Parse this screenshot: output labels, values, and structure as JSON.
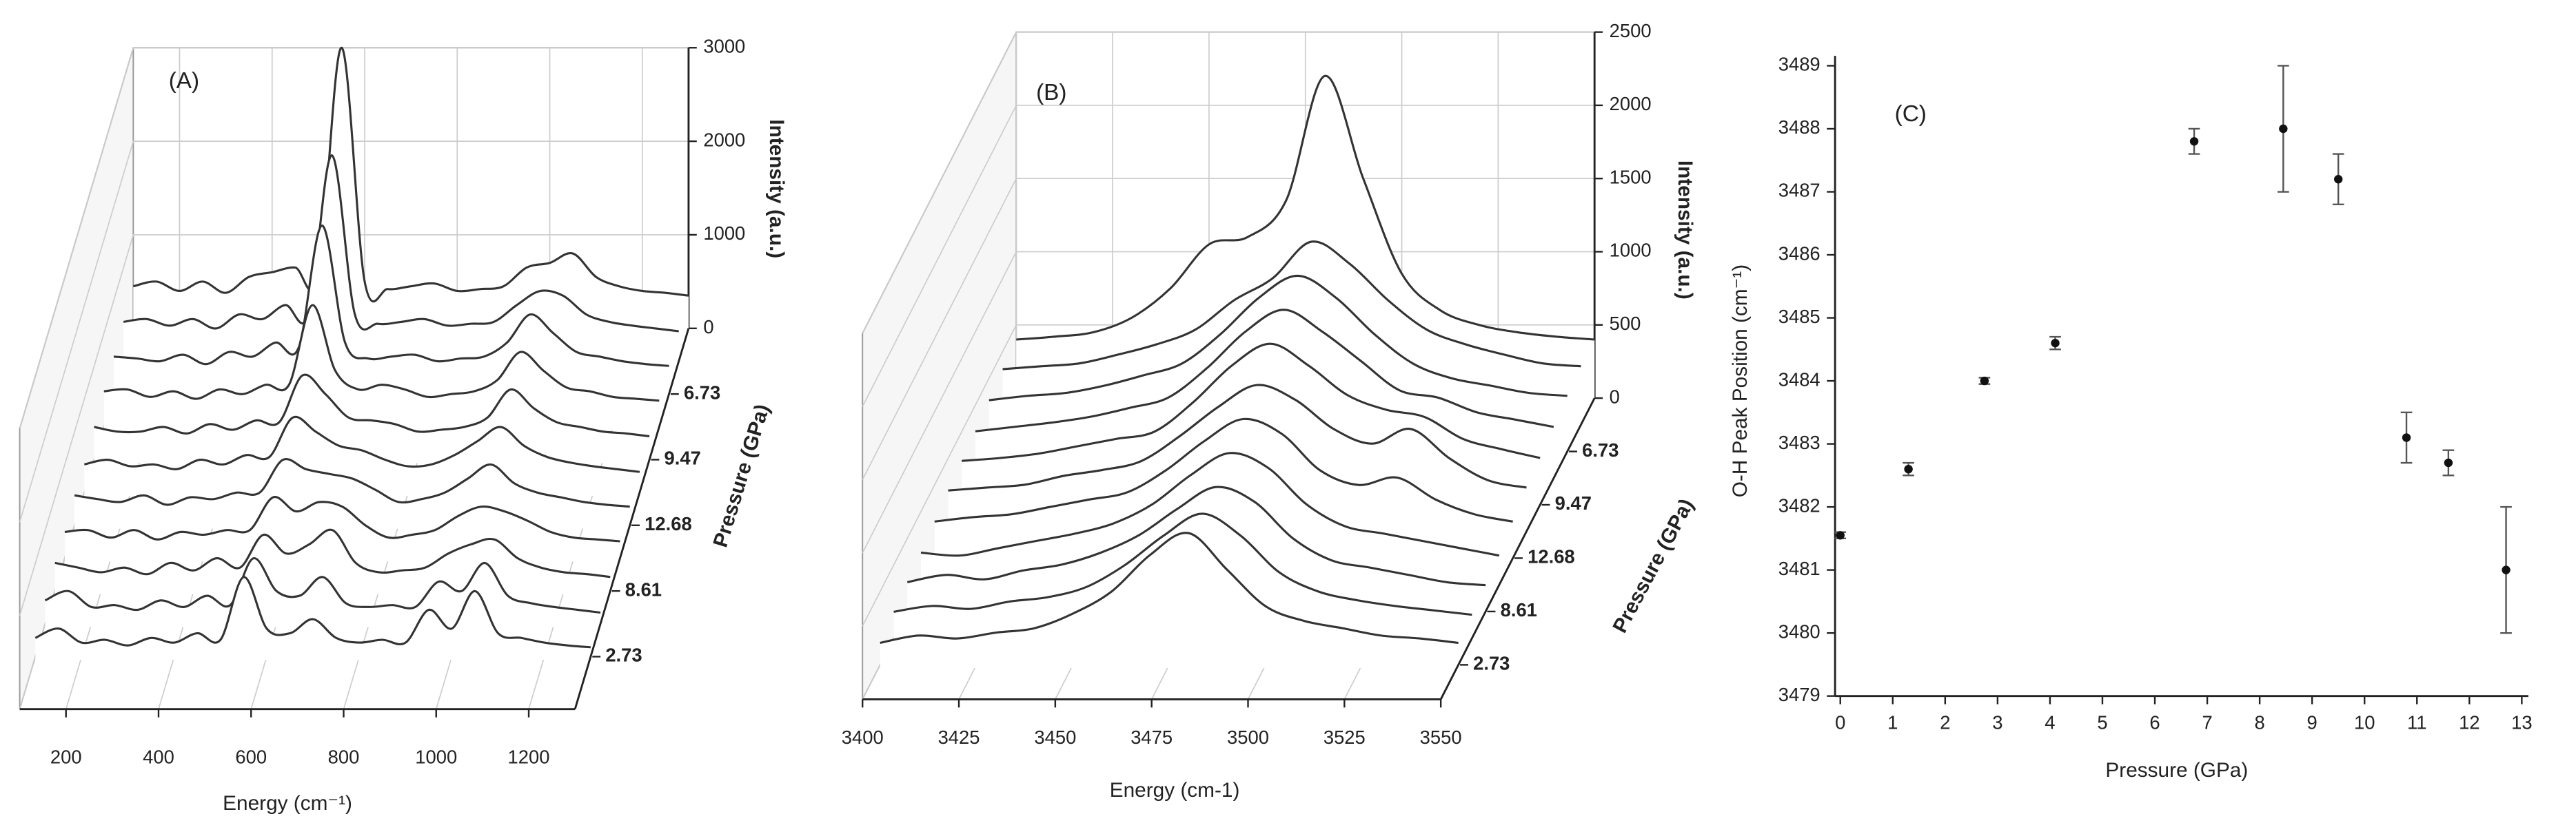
{
  "chart_data": [
    {
      "type": "waterfall",
      "label": "(A)",
      "xlabel": "Energy (cm⁻¹)",
      "ylabel": "Intensity (a.u.)",
      "zlabel": "Pressure (GPa)",
      "color": "#333333",
      "x": [
        100,
        150,
        200,
        250,
        300,
        350,
        400,
        450,
        500,
        550,
        600,
        650,
        700,
        750,
        800,
        850,
        900,
        950,
        1000,
        1050,
        1100,
        1150,
        1200,
        1250,
        1300
      ],
      "xlim": [
        100,
        1300
      ],
      "xticks": [
        200,
        400,
        600,
        800,
        1000,
        1200
      ],
      "ylim": [
        0,
        3000
      ],
      "yticks": [
        0,
        1000,
        2000,
        3000
      ],
      "categories": [
        "2.73",
        null,
        "8.61",
        null,
        "12.68",
        null,
        "9.47",
        null,
        "6.73",
        null,
        null
      ],
      "series": [
        {
          "values": [
            200,
            300,
            150,
            180,
            120,
            200,
            150,
            250,
            180,
            850,
            300,
            250,
            400,
            200,
            150,
            180,
            150,
            500,
            300,
            700,
            250,
            200,
            150,
            120,
            100
          ]
        },
        {
          "values": [
            250,
            350,
            180,
            200,
            150,
            250,
            180,
            300,
            200,
            700,
            350,
            300,
            500,
            220,
            180,
            200,
            180,
            450,
            350,
            650,
            300,
            220,
            180,
            150,
            120
          ]
        },
        {
          "values": [
            300,
            250,
            200,
            250,
            180,
            300,
            220,
            350,
            250,
            600,
            400,
            500,
            650,
            300,
            200,
            220,
            250,
            400,
            500,
            550,
            350,
            250,
            200,
            180,
            150
          ]
        },
        {
          "values": [
            280,
            300,
            220,
            300,
            200,
            280,
            250,
            300,
            300,
            650,
            500,
            600,
            550,
            350,
            220,
            250,
            300,
            450,
            550,
            500,
            400,
            280,
            220,
            200,
            180
          ]
        },
        {
          "values": [
            320,
            280,
            250,
            320,
            220,
            300,
            280,
            350,
            350,
            700,
            600,
            550,
            500,
            380,
            250,
            280,
            350,
            500,
            650,
            450,
            350,
            300,
            250,
            220,
            200
          ]
        },
        {
          "values": [
            300,
            350,
            280,
            300,
            250,
            350,
            300,
            400,
            380,
            800,
            650,
            500,
            450,
            350,
            280,
            300,
            400,
            550,
            700,
            500,
            380,
            320,
            280,
            250,
            220
          ]
        },
        {
          "values": [
            350,
            300,
            300,
            350,
            280,
            380,
            320,
            420,
            400,
            900,
            700,
            450,
            420,
            380,
            300,
            320,
            350,
            450,
            750,
            550,
            400,
            350,
            300,
            280,
            250
          ]
        },
        {
          "values": [
            380,
            400,
            320,
            380,
            300,
            400,
            350,
            450,
            450,
            1300,
            600,
            400,
            450,
            400,
            320,
            350,
            380,
            500,
            800,
            600,
            420,
            380,
            320,
            300,
            280
          ]
        },
        {
          "values": [
            400,
            380,
            350,
            420,
            320,
            450,
            400,
            550,
            500,
            1800,
            550,
            380,
            400,
            420,
            350,
            380,
            400,
            550,
            850,
            650,
            450,
            400,
            350,
            320,
            300
          ]
        },
        {
          "values": [
            420,
            450,
            380,
            450,
            350,
            500,
            450,
            600,
            500,
            2200,
            500,
            400,
            420,
            450,
            380,
            400,
            420,
            600,
            750,
            700,
            500,
            420,
            380,
            350,
            320
          ]
        },
        {
          "values": [
            450,
            500,
            400,
            500,
            380,
            550,
            600,
            650,
            550,
            3000,
            500,
            420,
            450,
            480,
            400,
            420,
            450,
            650,
            700,
            800,
            550,
            450,
            400,
            380,
            350
          ]
        }
      ]
    },
    {
      "type": "waterfall",
      "label": "(B)",
      "xlabel": "Energy (cm-1)",
      "ylabel": "Intensity (a.u.)",
      "zlabel": "Pressure (GPa)",
      "color": "#333333",
      "x": [
        3400,
        3410,
        3420,
        3430,
        3440,
        3450,
        3460,
        3470,
        3480,
        3490,
        3500,
        3510,
        3520,
        3530,
        3540,
        3550
      ],
      "xlim": [
        3400,
        3550
      ],
      "xticks": [
        3400,
        3425,
        3450,
        3475,
        3500,
        3525,
        3550
      ],
      "ylim": [
        0,
        2500
      ],
      "yticks": [
        0,
        500,
        1000,
        1500,
        2000,
        2500
      ],
      "categories": [
        "2.73",
        null,
        "8.61",
        null,
        "12.68",
        null,
        "9.47",
        null,
        "6.73",
        null,
        null
      ],
      "series": [
        {
          "values": [
            150,
            200,
            180,
            220,
            250,
            350,
            500,
            750,
            900,
            650,
            400,
            300,
            250,
            200,
            180,
            150
          ]
        },
        {
          "values": [
            180,
            220,
            200,
            250,
            280,
            350,
            500,
            700,
            850,
            700,
            450,
            320,
            260,
            220,
            190,
            160
          ]
        },
        {
          "values": [
            200,
            250,
            220,
            280,
            320,
            400,
            520,
            700,
            850,
            750,
            500,
            350,
            300,
            250,
            200,
            180
          ]
        },
        {
          "values": [
            220,
            200,
            250,
            300,
            350,
            420,
            550,
            750,
            900,
            800,
            550,
            400,
            350,
            300,
            250,
            200
          ]
        },
        {
          "values": [
            250,
            280,
            300,
            350,
            400,
            450,
            600,
            800,
            950,
            850,
            600,
            500,
            550,
            400,
            300,
            250
          ]
        },
        {
          "values": [
            280,
            300,
            320,
            380,
            420,
            480,
            650,
            850,
            1000,
            900,
            700,
            600,
            700,
            500,
            350,
            300
          ]
        },
        {
          "values": [
            300,
            320,
            350,
            400,
            450,
            500,
            700,
            950,
            1100,
            950,
            750,
            650,
            600,
            450,
            380,
            320
          ]
        },
        {
          "values": [
            320,
            350,
            380,
            420,
            480,
            550,
            750,
            1000,
            1150,
            1000,
            800,
            600,
            550,
            450,
            400,
            350
          ]
        },
        {
          "values": [
            350,
            380,
            400,
            450,
            520,
            600,
            800,
            1050,
            1200,
            1050,
            800,
            600,
            500,
            450,
            400,
            380
          ]
        },
        {
          "values": [
            380,
            400,
            420,
            480,
            550,
            650,
            850,
            1000,
            1250,
            1100,
            850,
            650,
            550,
            480,
            420,
            400
          ]
        },
        {
          "values": [
            400,
            420,
            450,
            550,
            750,
            1050,
            1100,
            1350,
            2200,
            1500,
            850,
            600,
            500,
            450,
            420,
            400
          ]
        }
      ]
    },
    {
      "type": "scatter",
      "label": "(C)",
      "xlabel": "Pressure (GPa)",
      "ylabel": "O-H Peak Position (cm⁻¹)",
      "color": "#111111",
      "x": [
        0,
        1.3,
        2.75,
        4.1,
        6.75,
        8.45,
        9.5,
        10.8,
        11.6,
        12.7
      ],
      "values": [
        3481.55,
        3482.6,
        3484.0,
        3484.6,
        3487.8,
        3488.0,
        3487.2,
        3483.1,
        3482.7,
        3481.0
      ],
      "errors": [
        0.05,
        0.1,
        0.05,
        0.1,
        0.2,
        1.0,
        0.4,
        0.4,
        0.2,
        1.0
      ],
      "xlim": [
        -0.1,
        13
      ],
      "xticks": [
        0,
        1,
        2,
        3,
        4,
        5,
        6,
        7,
        8,
        9,
        10,
        11,
        12,
        13
      ],
      "ylim": [
        3479,
        3489
      ],
      "yticks": [
        3479,
        3480,
        3481,
        3482,
        3483,
        3484,
        3485,
        3486,
        3487,
        3488,
        3489
      ]
    }
  ]
}
